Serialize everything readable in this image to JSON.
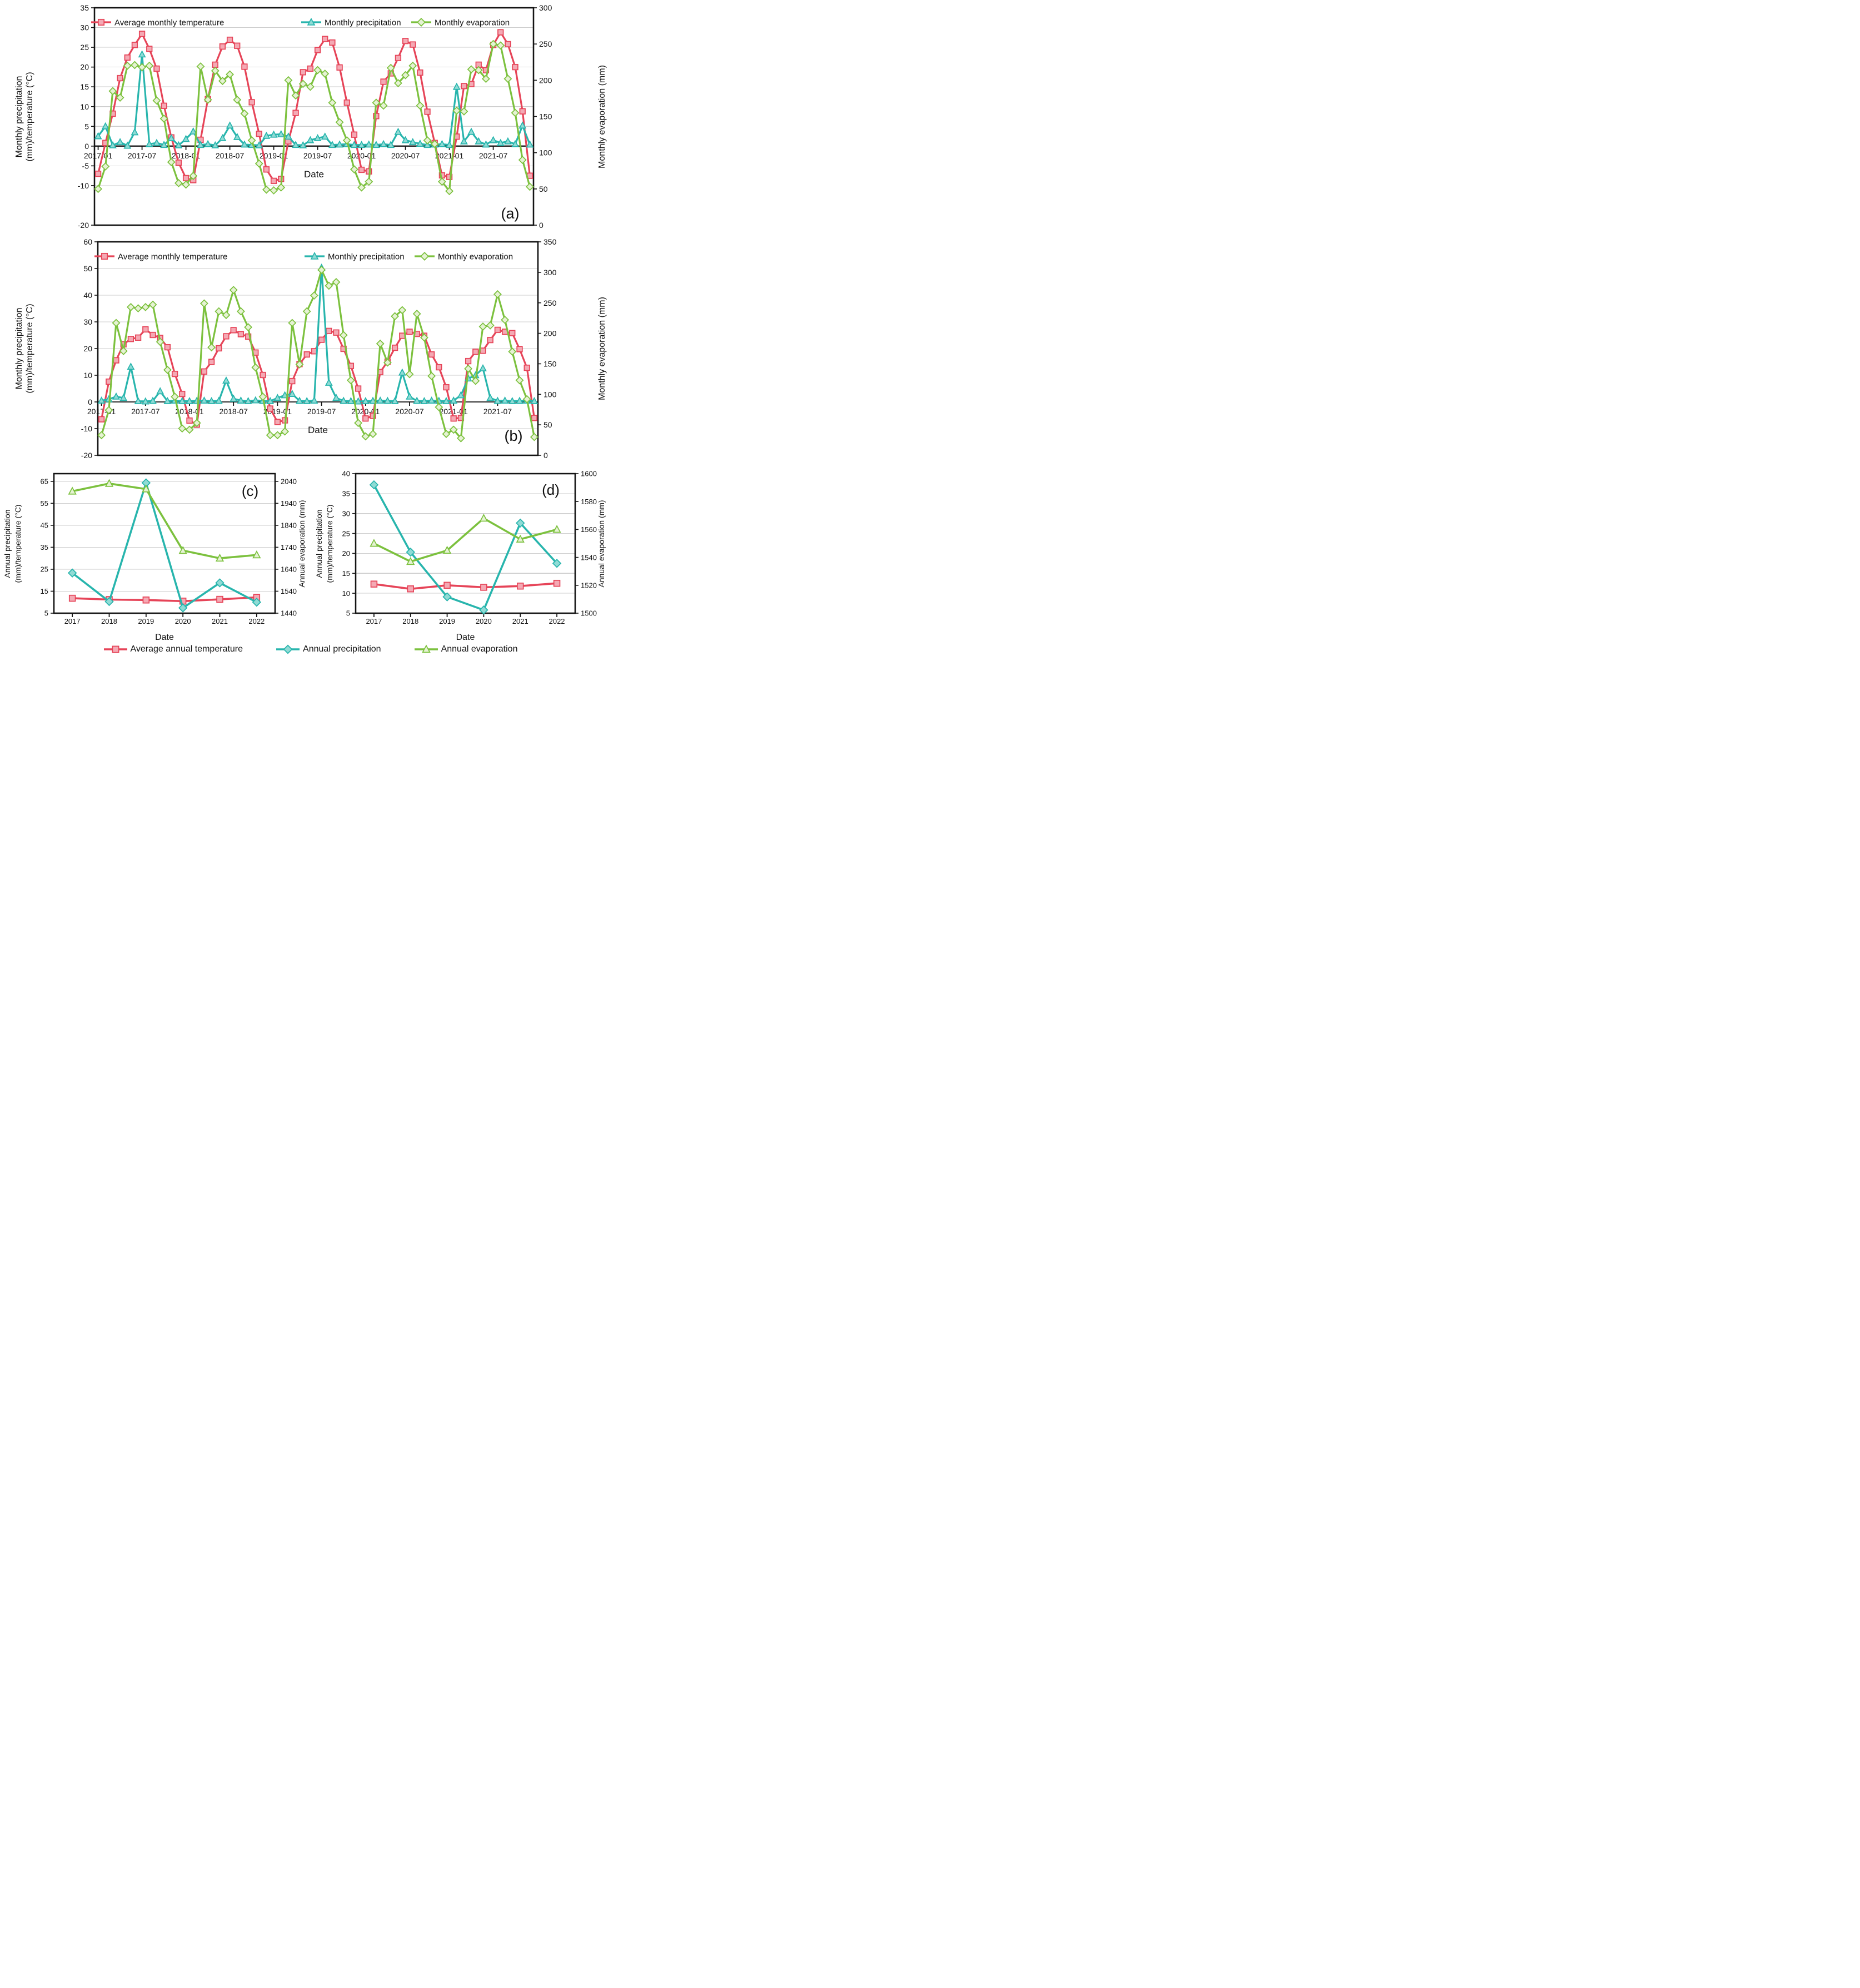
{
  "colors": {
    "temperature": {
      "line": "#e64458",
      "fill": "#f4a9b4"
    },
    "precipitation": {
      "line": "#28b5ad",
      "fill": "#90dbd5"
    },
    "evaporation": {
      "line": "#7cc13e",
      "fill": "#e6f2d4"
    },
    "grid": "#cdcdcd",
    "zero_line": "#2f2f2f",
    "axis": "#141414",
    "text": "#111111"
  },
  "shared_legend": {
    "items": [
      {
        "label": "Average annual temperature",
        "marker": "square",
        "color": "temperature"
      },
      {
        "label": "Annual precipitation",
        "marker": "diamond",
        "color": "precipitation"
      },
      {
        "label": "Annual evaporation",
        "marker": "triangle",
        "color": "evaporation"
      }
    ]
  },
  "chart_data": [
    {
      "id": "a",
      "type": "line",
      "panel_label": "(a)",
      "xlabel": "Date",
      "ylabel_left": [
        "Monthly precipitation",
        "(mm)/temperature (°C)"
      ],
      "ylabel_right": "Monthly evaporation (mm)",
      "ylim_left": [
        -20,
        35
      ],
      "yticks_left": [
        35,
        30,
        25,
        20,
        15,
        10,
        5,
        0,
        -5,
        -10,
        -20
      ],
      "ylim_right": [
        0,
        300
      ],
      "yticks_right": [
        300,
        250,
        200,
        150,
        100,
        50,
        0
      ],
      "x_count": 60,
      "x_tick_labels": [
        "2017-01",
        "2017-07",
        "2018-01",
        "2018-07",
        "2019-01",
        "2019-07",
        "2020-01",
        "2020-07",
        "2021-01",
        "2021-07"
      ],
      "x_tick_index": [
        0,
        6,
        12,
        18,
        24,
        30,
        36,
        42,
        48,
        54
      ],
      "legend": [
        "Average monthly temperature",
        "Monthly precipitation",
        "Monthly evaporation"
      ],
      "series": [
        {
          "name": "Average monthly temperature",
          "axis": "left",
          "marker": "square",
          "color": "temperature",
          "values": [
            -7.0,
            0.8,
            8.2,
            17.2,
            22.4,
            25.6,
            28.4,
            24.6,
            19.6,
            10.2,
            2.2,
            -4.2,
            -8.1,
            -8.6,
            1.6,
            11.9,
            20.6,
            25.2,
            26.9,
            25.4,
            20.1,
            11.1,
            3.1,
            -5.9,
            -8.8,
            -8.3,
            1.2,
            8.4,
            18.7,
            19.6,
            24.3,
            27.1,
            26.2,
            19.9,
            11.0,
            2.9,
            -6.0,
            -6.4,
            7.6,
            16.3,
            18.4,
            22.3,
            26.6,
            25.7,
            18.6,
            8.7,
            0.8,
            -7.4,
            -7.8,
            2.4,
            15.2,
            15.7,
            20.6,
            19.2,
            25.6,
            28.8,
            25.8,
            20.0,
            8.8,
            -7.5
          ]
        },
        {
          "name": "Monthly precipitation",
          "axis": "left",
          "marker": "triangle",
          "color": "precipitation",
          "values": [
            2.5,
            5.0,
            0.2,
            1.0,
            0.1,
            3.5,
            23.2,
            0.5,
            0.8,
            0.3,
            2.0,
            0.2,
            1.8,
            3.7,
            0.3,
            0.5,
            0.2,
            2.0,
            5.2,
            2.3,
            0.4,
            0.3,
            0.2,
            2.6,
            2.9,
            3.0,
            2.4,
            0.3,
            0.2,
            1.5,
            2.0,
            2.4,
            0.3,
            0.4,
            0.5,
            0.3,
            0.3,
            0.4,
            0.3,
            0.5,
            0.3,
            3.6,
            1.5,
            1.0,
            0.6,
            0.3,
            0.4,
            0.5,
            0.3,
            15.0,
            1.2,
            3.6,
            1.2,
            0.4,
            1.5,
            0.8,
            1.2,
            0.5,
            5.2,
            0.4
          ]
        },
        {
          "name": "Monthly evaporation",
          "axis": "right",
          "marker": "diamond",
          "color": "evaporation",
          "values": [
            50,
            81,
            185,
            176,
            220,
            221,
            218,
            220,
            172,
            147,
            87,
            58,
            56,
            68,
            219,
            173,
            213,
            199,
            208,
            173,
            154,
            117,
            85,
            49,
            48,
            52,
            200,
            179,
            195,
            191,
            214,
            209,
            169,
            142,
            117,
            77,
            52,
            60,
            169,
            165,
            217,
            196,
            207,
            220,
            165,
            117,
            112,
            60,
            47,
            158,
            157,
            215,
            214,
            202,
            250,
            248,
            202,
            155,
            90,
            53
          ]
        }
      ]
    },
    {
      "id": "b",
      "type": "line",
      "panel_label": "(b)",
      "xlabel": "Date",
      "ylabel_left": [
        "Monthly precipitation",
        "(mm)/temperature (°C)"
      ],
      "ylabel_right": "Monthly evaporation (mm)",
      "ylim_left": [
        -20,
        60
      ],
      "yticks_left": [
        60,
        50,
        40,
        30,
        20,
        10,
        0,
        -10,
        -20
      ],
      "ylim_right": [
        0,
        350
      ],
      "yticks_right": [
        350,
        300,
        250,
        200,
        150,
        100,
        50,
        0
      ],
      "x_count": 60,
      "x_tick_labels": [
        "2017-01",
        "2017-07",
        "2018-01",
        "2018-07",
        "2019-01",
        "2019-07",
        "2020-01",
        "2020-07",
        "2021-01",
        "2021-07"
      ],
      "x_tick_index": [
        0,
        6,
        12,
        18,
        24,
        30,
        36,
        42,
        48,
        54
      ],
      "legend": [
        "Average monthly temperature",
        "Monthly precipitation",
        "Monthly evaporation"
      ],
      "series": [
        {
          "name": "Average monthly temperature",
          "axis": "left",
          "marker": "square",
          "color": "temperature",
          "values": [
            -6.5,
            7.6,
            15.6,
            21.6,
            23.6,
            24.1,
            27.2,
            25.1,
            24.0,
            20.5,
            10.5,
            3.0,
            -7.0,
            -8.5,
            11.4,
            15.0,
            20.1,
            24.6,
            26.9,
            25.4,
            24.5,
            18.5,
            10.1,
            -2.5,
            -7.5,
            -6.9,
            7.8,
            14.2,
            17.8,
            19.0,
            23.3,
            26.6,
            26.0,
            19.9,
            13.5,
            5.0,
            -6.2,
            -5.2,
            11.2,
            15.1,
            20.3,
            24.8,
            26.3,
            25.5,
            24.8,
            17.8,
            13.0,
            5.5,
            -6.2,
            -6.0,
            15.3,
            18.8,
            19.2,
            23.2,
            27.0,
            26.3,
            25.8,
            19.8,
            12.8,
            -6.0
          ]
        },
        {
          "name": "Monthly precipitation",
          "axis": "left",
          "marker": "triangle",
          "color": "precipitation",
          "values": [
            0.5,
            1.0,
            2.0,
            1.5,
            13.2,
            0.3,
            0.2,
            0.4,
            4.0,
            0.3,
            0.5,
            0.3,
            0.3,
            0.4,
            0.5,
            0.3,
            0.4,
            8.0,
            1.2,
            0.5,
            0.3,
            0.6,
            0.4,
            0.3,
            1.5,
            2.5,
            3.0,
            0.4,
            0.3,
            0.5,
            50.3,
            7.2,
            1.5,
            0.4,
            0.3,
            0.2,
            0.3,
            0.4,
            0.5,
            0.4,
            0.3,
            11.0,
            2.0,
            0.4,
            0.3,
            0.5,
            0.4,
            0.3,
            0.5,
            2.5,
            8.8,
            10.0,
            12.6,
            1.5,
            0.4,
            0.5,
            0.3,
            0.4,
            0.5,
            0.3
          ]
        },
        {
          "name": "Monthly evaporation",
          "axis": "right",
          "marker": "diamond",
          "color": "evaporation",
          "values": [
            33,
            74,
            217,
            171,
            243,
            241,
            243,
            247,
            186,
            140,
            96,
            44,
            42,
            53,
            249,
            177,
            236,
            230,
            271,
            236,
            210,
            144,
            96,
            33,
            33,
            39,
            217,
            149,
            236,
            262,
            304,
            278,
            284,
            197,
            123,
            53,
            31,
            35,
            183,
            152,
            228,
            238,
            133,
            232,
            193,
            130,
            79,
            35,
            42,
            28,
            142,
            122,
            211,
            213,
            264,
            222,
            170,
            123,
            92,
            30
          ]
        }
      ]
    },
    {
      "id": "c",
      "type": "line",
      "panel_label": "(c)",
      "xlabel": "Date",
      "ylabel_left": [
        "Annual precipitation",
        "(mm)/temperature (°C)"
      ],
      "ylabel_right": "Annual evaporation (mm)",
      "ylim_left": [
        5,
        68.5
      ],
      "yticks_left": [
        65,
        55,
        45,
        35,
        25,
        15,
        5
      ],
      "ylim_right": [
        1440,
        2075
      ],
      "yticks_right": [
        2040,
        1940,
        1840,
        1740,
        1640,
        1540,
        1440
      ],
      "x_count": 6,
      "x_tick_labels": [
        "2017",
        "2018",
        "2019",
        "2020",
        "2021",
        "2022"
      ],
      "x_tick_index": [
        0,
        1,
        2,
        3,
        4,
        5
      ],
      "series": [
        {
          "name": "Average annual temperature",
          "axis": "left",
          "marker": "square",
          "color": "temperature",
          "values": [
            11.8,
            11.2,
            11.0,
            10.5,
            11.3,
            12.2
          ]
        },
        {
          "name": "Annual precipitation",
          "axis": "left",
          "marker": "diamond",
          "color": "precipitation",
          "values": [
            23.3,
            10.3,
            64.3,
            7.4,
            18.8,
            10.0
          ]
        },
        {
          "name": "Annual evaporation",
          "axis": "right",
          "marker": "triangle",
          "color": "evaporation",
          "values": [
            1995,
            2030,
            2005,
            1725,
            1690,
            1705
          ]
        }
      ]
    },
    {
      "id": "d",
      "type": "line",
      "panel_label": "(d)",
      "xlabel": "Date",
      "ylabel_left": [
        "Annual precipitation",
        "(mm)/temperature (°C)"
      ],
      "ylabel_right": "Annual evaporation (mm)",
      "ylim_left": [
        5,
        40
      ],
      "yticks_left": [
        40,
        35,
        30,
        25,
        20,
        15,
        10,
        5
      ],
      "ylim_right": [
        1500,
        1600
      ],
      "yticks_right": [
        1600,
        1580,
        1560,
        1540,
        1520,
        1500
      ],
      "x_count": 6,
      "x_tick_labels": [
        "2017",
        "2018",
        "2019",
        "2020",
        "2021",
        "2022"
      ],
      "x_tick_index": [
        0,
        1,
        2,
        3,
        4,
        5
      ],
      "series": [
        {
          "name": "Average annual temperature",
          "axis": "left",
          "marker": "square",
          "color": "temperature",
          "values": [
            12.3,
            11.1,
            12.0,
            11.5,
            11.8,
            12.5
          ]
        },
        {
          "name": "Annual precipitation",
          "axis": "left",
          "marker": "diamond",
          "color": "precipitation",
          "values": [
            37.2,
            20.3,
            9.1,
            5.8,
            27.6,
            17.5
          ]
        },
        {
          "name": "Annual evaporation",
          "axis": "right",
          "marker": "triangle",
          "color": "evaporation",
          "values": [
            1550,
            1537,
            1545,
            1568,
            1553,
            1560
          ]
        }
      ]
    }
  ]
}
